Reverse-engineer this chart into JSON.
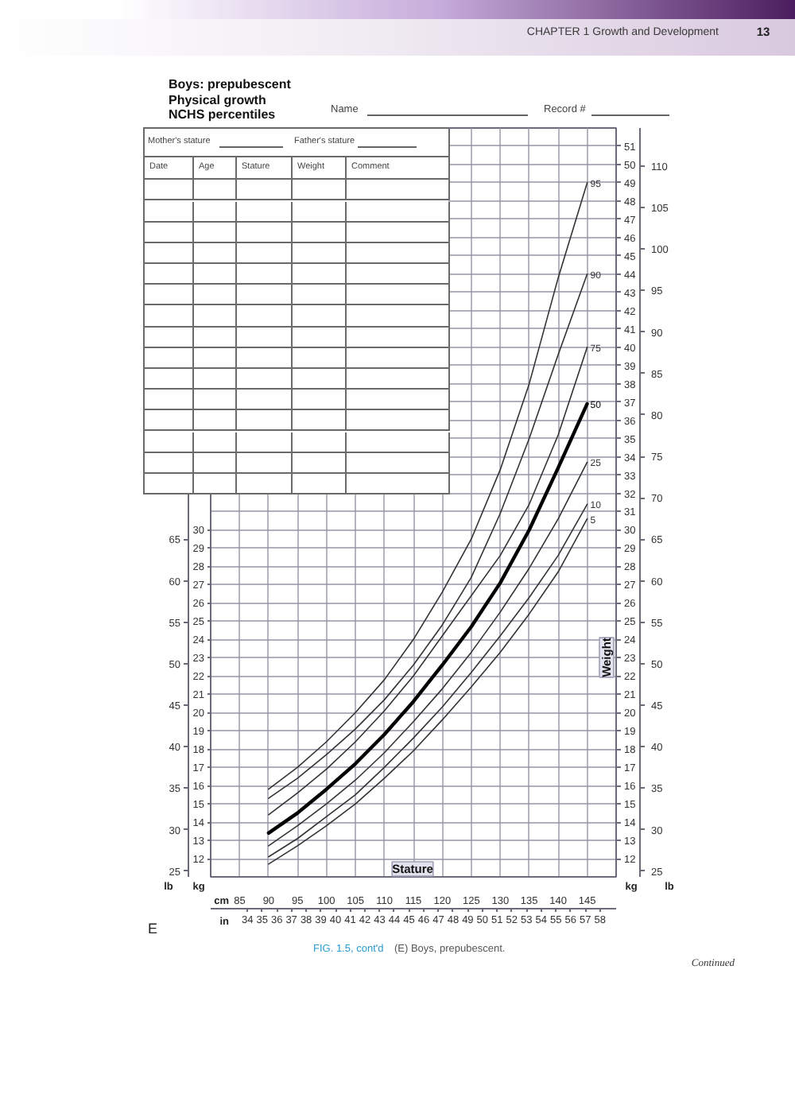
{
  "chart_data": {
    "type": "line",
    "title": "Boys: prepubescent\nPhysical growth\nNCHS percentiles",
    "xlabel": "Stature",
    "y2label": "Weight",
    "x": [
      90,
      95,
      100,
      105,
      110,
      115,
      120,
      125,
      130,
      135,
      140,
      145
    ],
    "series": [
      {
        "name": "95",
        "color": "#333333",
        "values": [
          15.8,
          17.0,
          18.4,
          20.0,
          21.8,
          24.0,
          26.6,
          29.5,
          33.3,
          38.0,
          43.8,
          49.0
        ]
      },
      {
        "name": "90",
        "color": "#333333",
        "values": [
          15.3,
          16.4,
          17.7,
          19.1,
          20.7,
          22.6,
          24.8,
          27.4,
          30.9,
          35.0,
          39.6,
          44.0
        ]
      },
      {
        "name": "75",
        "color": "#333333",
        "values": [
          14.4,
          15.6,
          16.9,
          18.4,
          20.1,
          22.0,
          24.2,
          26.4,
          28.6,
          31.4,
          35.2,
          40.0
        ]
      },
      {
        "name": "50",
        "color": "#000000",
        "values": [
          13.4,
          14.5,
          15.8,
          17.2,
          18.8,
          20.6,
          22.6,
          24.7,
          27.1,
          30.0,
          33.4,
          36.9
        ]
      },
      {
        "name": "25",
        "color": "#333333",
        "values": [
          12.7,
          13.8,
          15.0,
          16.3,
          17.8,
          19.5,
          21.3,
          23.3,
          25.5,
          27.9,
          30.6,
          33.7
        ]
      },
      {
        "name": "10",
        "color": "#333333",
        "values": [
          12.1,
          13.1,
          14.3,
          15.5,
          17.0,
          18.6,
          20.3,
          22.2,
          24.2,
          26.3,
          28.6,
          31.4
        ]
      },
      {
        "name": "5",
        "color": "#333333",
        "values": [
          11.7,
          12.7,
          13.8,
          15.0,
          16.4,
          17.9,
          19.6,
          21.4,
          23.3,
          25.4,
          27.7,
          30.6
        ]
      }
    ],
    "xlim": [
      80,
      150
    ],
    "xticks": [
      85,
      90,
      95,
      100,
      105,
      110,
      115,
      120,
      125,
      130,
      135,
      140,
      145
    ],
    "x2lim": [
      31.5,
      59.1
    ],
    "x2ticks": [
      34,
      35,
      36,
      37,
      38,
      39,
      40,
      41,
      42,
      43,
      44,
      45,
      46,
      47,
      48,
      49,
      50,
      51,
      52,
      53,
      54,
      55,
      56,
      57,
      58
    ],
    "ylim": [
      11,
      52
    ],
    "yticks": [
      12,
      13,
      14,
      15,
      16,
      17,
      18,
      19,
      20,
      21,
      22,
      23,
      24,
      25,
      26,
      27,
      28,
      29,
      30
    ],
    "y2lim": [
      11,
      52
    ],
    "y2ticks": [
      12,
      13,
      14,
      15,
      16,
      17,
      18,
      19,
      20,
      21,
      22,
      23,
      24,
      25,
      26,
      27,
      28,
      29,
      30,
      31,
      32,
      33,
      34,
      35,
      36,
      37,
      38,
      39,
      40,
      41,
      42,
      43,
      44,
      45,
      46,
      47,
      48,
      49,
      50,
      51
    ],
    "y3lim": [
      24.3,
      114.6
    ],
    "y3ticks": [
      25,
      30,
      35,
      40,
      45,
      50,
      55,
      60,
      65,
      70,
      75,
      80,
      85,
      90,
      95,
      100,
      105,
      110
    ],
    "grid": true,
    "annotations": [
      "CHAPTER 1 Growth and Development",
      "13",
      "Name",
      "Record #",
      "Mother's stature",
      "Father's stature",
      "Date",
      "Age",
      "Stature",
      "Weight",
      "Comment",
      "E",
      "FIG. 1.5, cont'd",
      "(E) Boys, prepubescent.",
      "Continued",
      "cm",
      "in",
      "lb",
      "kg",
      "kg",
      "lb",
      "25",
      "30",
      "35",
      "40",
      "45",
      "50",
      "55",
      "60",
      "65"
    ]
  }
}
